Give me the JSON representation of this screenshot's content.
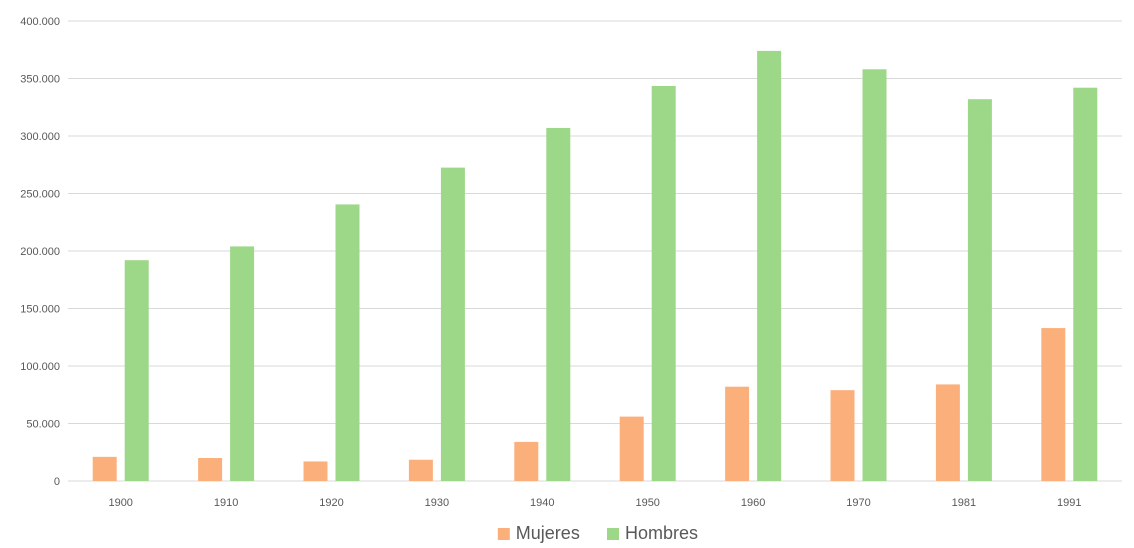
{
  "chart_data": {
    "type": "bar",
    "title": "",
    "xlabel": "",
    "ylabel": "",
    "categories": [
      "1900",
      "1910",
      "1920",
      "1930",
      "1940",
      "1950",
      "1960",
      "1970",
      "1981",
      "1991"
    ],
    "series": [
      {
        "name": "Mujeres",
        "color": "#fbb07c",
        "values": [
          21000,
          20000,
          17000,
          18500,
          34000,
          56000,
          82000,
          79000,
          84000,
          133000
        ]
      },
      {
        "name": "Hombres",
        "color": "#9dd788",
        "values": [
          192000,
          204000,
          240500,
          272500,
          307000,
          343500,
          374000,
          358000,
          332000,
          342000
        ]
      }
    ],
    "ylim": [
      0,
      400000
    ],
    "yticks": [
      "0",
      "50.000",
      "100.000",
      "150.000",
      "200.000",
      "250.000",
      "300.000",
      "350.000",
      "400.000"
    ],
    "grid": true,
    "gridline_color": "#d9d9d9",
    "legend": "bottom-center"
  }
}
